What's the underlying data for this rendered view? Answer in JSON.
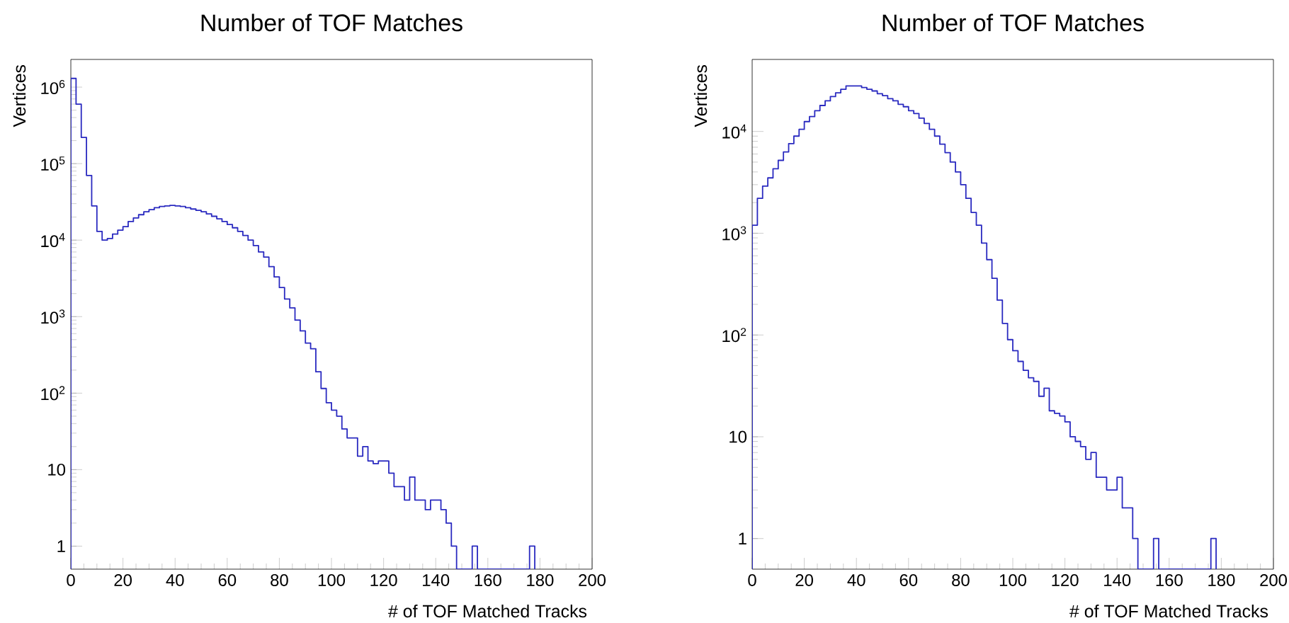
{
  "chart_data": [
    {
      "type": "histogram",
      "title": "Number of TOF Matches",
      "xlabel": "# of TOF Matched Tracks",
      "ylabel": "Vertices",
      "log": "y",
      "color": "#2a2ac0",
      "bins": [
        0,
        2,
        4,
        6,
        8,
        10,
        12,
        14,
        16,
        18,
        20,
        22,
        24,
        26,
        28,
        30,
        32,
        34,
        36,
        38,
        40,
        42,
        44,
        46,
        48,
        50,
        52,
        54,
        56,
        58,
        60,
        62,
        64,
        66,
        68,
        70,
        72,
        74,
        76,
        78,
        80,
        82,
        84,
        86,
        88,
        90,
        92,
        94,
        96,
        98,
        100,
        102,
        104,
        106,
        108,
        110,
        112,
        114,
        116,
        118,
        120,
        122,
        124,
        126,
        128,
        130,
        132,
        134,
        136,
        138,
        140,
        142,
        144,
        146,
        148,
        150,
        152,
        154,
        156,
        158,
        160,
        162,
        164,
        166,
        168,
        170,
        172,
        174,
        176,
        178
      ],
      "values": [
        1300000,
        600000,
        220000,
        70000,
        28000,
        13000,
        10000,
        10500,
        12000,
        13500,
        15000,
        17500,
        19500,
        21500,
        23500,
        25000,
        26500,
        27500,
        28000,
        28500,
        28000,
        27500,
        26500,
        25500,
        24500,
        23500,
        22000,
        20500,
        19000,
        17500,
        16000,
        14500,
        13000,
        11500,
        10000,
        8500,
        7000,
        6000,
        4500,
        3300,
        2400,
        1700,
        1300,
        900,
        650,
        450,
        380,
        190,
        115,
        75,
        60,
        50,
        34,
        26,
        26,
        15,
        20,
        13,
        12,
        13,
        13,
        9,
        6,
        6,
        4,
        8,
        4,
        4,
        3,
        4,
        4,
        3,
        2,
        1,
        null,
        null,
        null,
        1,
        null,
        null,
        null,
        null,
        null,
        null,
        null,
        null,
        null,
        null,
        1
      ],
      "xlim": [
        0,
        200
      ],
      "xticks": [
        0,
        20,
        40,
        60,
        80,
        100,
        120,
        140,
        160,
        180,
        200
      ],
      "ylim": [
        0.5,
        2300000
      ],
      "yticks": [
        {
          "value": 1,
          "label": "1"
        },
        {
          "value": 10,
          "label": "10"
        },
        {
          "value": 100,
          "label": "10$^{2}$"
        },
        {
          "value": 1000,
          "label": "10$^{3}$"
        },
        {
          "value": 10000,
          "label": "10$^{4}$"
        },
        {
          "value": 100000,
          "label": "10$^{5}$"
        },
        {
          "value": 1000000,
          "label": "10$^{6}$"
        }
      ]
    },
    {
      "type": "histogram",
      "title": "Number of TOF Matches",
      "xlabel": "# of TOF Matched Tracks",
      "ylabel": "Vertices",
      "log": "y",
      "color": "#2a2ac0",
      "bins": [
        0,
        2,
        4,
        6,
        8,
        10,
        12,
        14,
        16,
        18,
        20,
        22,
        24,
        26,
        28,
        30,
        32,
        34,
        36,
        38,
        40,
        42,
        44,
        46,
        48,
        50,
        52,
        54,
        56,
        58,
        60,
        62,
        64,
        66,
        68,
        70,
        72,
        74,
        76,
        78,
        80,
        82,
        84,
        86,
        88,
        90,
        92,
        94,
        96,
        98,
        100,
        102,
        104,
        106,
        108,
        110,
        112,
        114,
        116,
        118,
        120,
        122,
        124,
        126,
        128,
        130,
        132,
        134,
        136,
        138,
        140,
        142,
        144,
        146,
        148,
        150,
        152,
        154,
        156,
        158,
        160,
        162,
        164,
        166,
        168,
        170,
        172,
        174,
        176,
        178
      ],
      "values": [
        1200,
        2200,
        2900,
        3500,
        4300,
        5200,
        6300,
        7600,
        9000,
        10500,
        12500,
        14000,
        16000,
        18000,
        20000,
        22000,
        24000,
        26000,
        28000,
        28000,
        28000,
        27000,
        26000,
        25000,
        23500,
        22500,
        21000,
        20000,
        18500,
        17500,
        16000,
        15000,
        13500,
        12000,
        10500,
        9000,
        7500,
        6200,
        5000,
        4000,
        3000,
        2200,
        1600,
        1200,
        800,
        550,
        360,
        220,
        130,
        90,
        70,
        55,
        45,
        38,
        35,
        25,
        30,
        18,
        17,
        16,
        14,
        10,
        9,
        8,
        6,
        7,
        4,
        4,
        3,
        3,
        4,
        2,
        2,
        1,
        null,
        null,
        null,
        1,
        null,
        null,
        null,
        null,
        null,
        null,
        null,
        null,
        null,
        null,
        1
      ],
      "xlim": [
        0,
        200
      ],
      "xticks": [
        0,
        20,
        40,
        60,
        80,
        100,
        120,
        140,
        160,
        180,
        200
      ],
      "ylim": [
        0.5,
        51000
      ],
      "yticks": [
        {
          "value": 1,
          "label": "1"
        },
        {
          "value": 10,
          "label": "10"
        },
        {
          "value": 100,
          "label": "10$^{2}$"
        },
        {
          "value": 1000,
          "label": "10$^{3}$"
        },
        {
          "value": 10000,
          "label": "10$^{4}$"
        }
      ]
    }
  ]
}
